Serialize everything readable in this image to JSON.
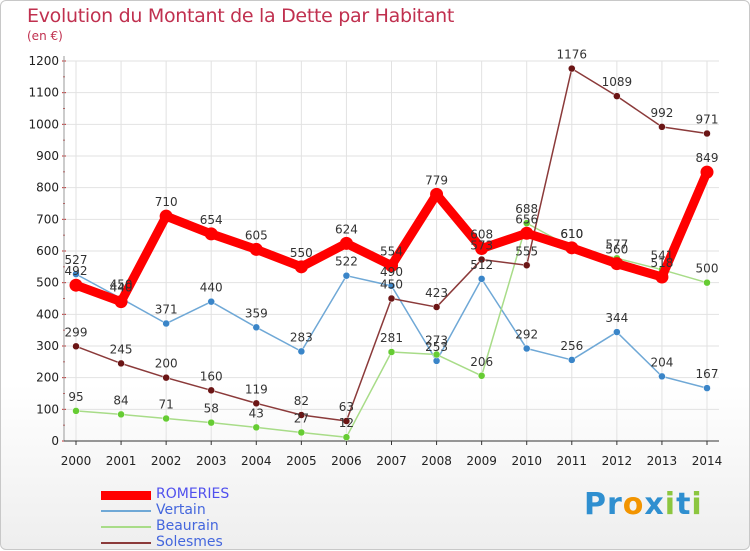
{
  "chart_data": {
    "type": "line",
    "title": "Evolution du Montant de la Dette par Habitant",
    "subtitle": "(en €)",
    "xlabel": "",
    "ylabel": "",
    "x": [
      "2000",
      "2001",
      "2002",
      "2003",
      "2004",
      "2005",
      "2006",
      "2007",
      "2008",
      "2009",
      "2010",
      "2011",
      "2012",
      "2013",
      "2014"
    ],
    "ylim": [
      0,
      1200
    ],
    "yticks": [
      0,
      100,
      200,
      300,
      400,
      500,
      600,
      700,
      800,
      900,
      1000,
      1100,
      1200
    ],
    "grid": true,
    "legend_position": "bottom-left",
    "series": [
      {
        "name": "ROMERIES",
        "color": "#ff0000",
        "point_color": "#ff0000",
        "values": [
          492,
          440,
          710,
          654,
          605,
          550,
          624,
          554,
          779,
          608,
          656,
          610,
          560,
          518,
          849
        ]
      },
      {
        "name": "Vertain",
        "color": "#6fa8d6",
        "point_color": "#3a85c8",
        "values": [
          527,
          450,
          371,
          440,
          359,
          283,
          522,
          490,
          253,
          512,
          292,
          256,
          344,
          204,
          167
        ]
      },
      {
        "name": "Beaurain",
        "color": "#a8dc88",
        "point_color": "#66cc33",
        "values": [
          95,
          84,
          71,
          58,
          43,
          27,
          12,
          281,
          273,
          206,
          688,
          610,
          577,
          541,
          500
        ]
      },
      {
        "name": "Solesmes",
        "color": "#8b3a3a",
        "point_color": "#6b1515",
        "values": [
          299,
          245,
          200,
          160,
          119,
          82,
          63,
          450,
          423,
          573,
          555,
          1176,
          1089,
          992,
          971
        ]
      }
    ]
  },
  "logo": {
    "text": "Proxiti",
    "letters": [
      {
        "ch": "P",
        "color": "#2f8fd0"
      },
      {
        "ch": "r",
        "color": "#2f8fd0"
      },
      {
        "ch": "o",
        "color": "#f29400"
      },
      {
        "ch": "x",
        "color": "#2f8fd0"
      },
      {
        "ch": "i",
        "color": "#8cc63f"
      },
      {
        "ch": "t",
        "color": "#2f8fd0"
      },
      {
        "ch": "i",
        "color": "#8cc63f"
      }
    ]
  }
}
